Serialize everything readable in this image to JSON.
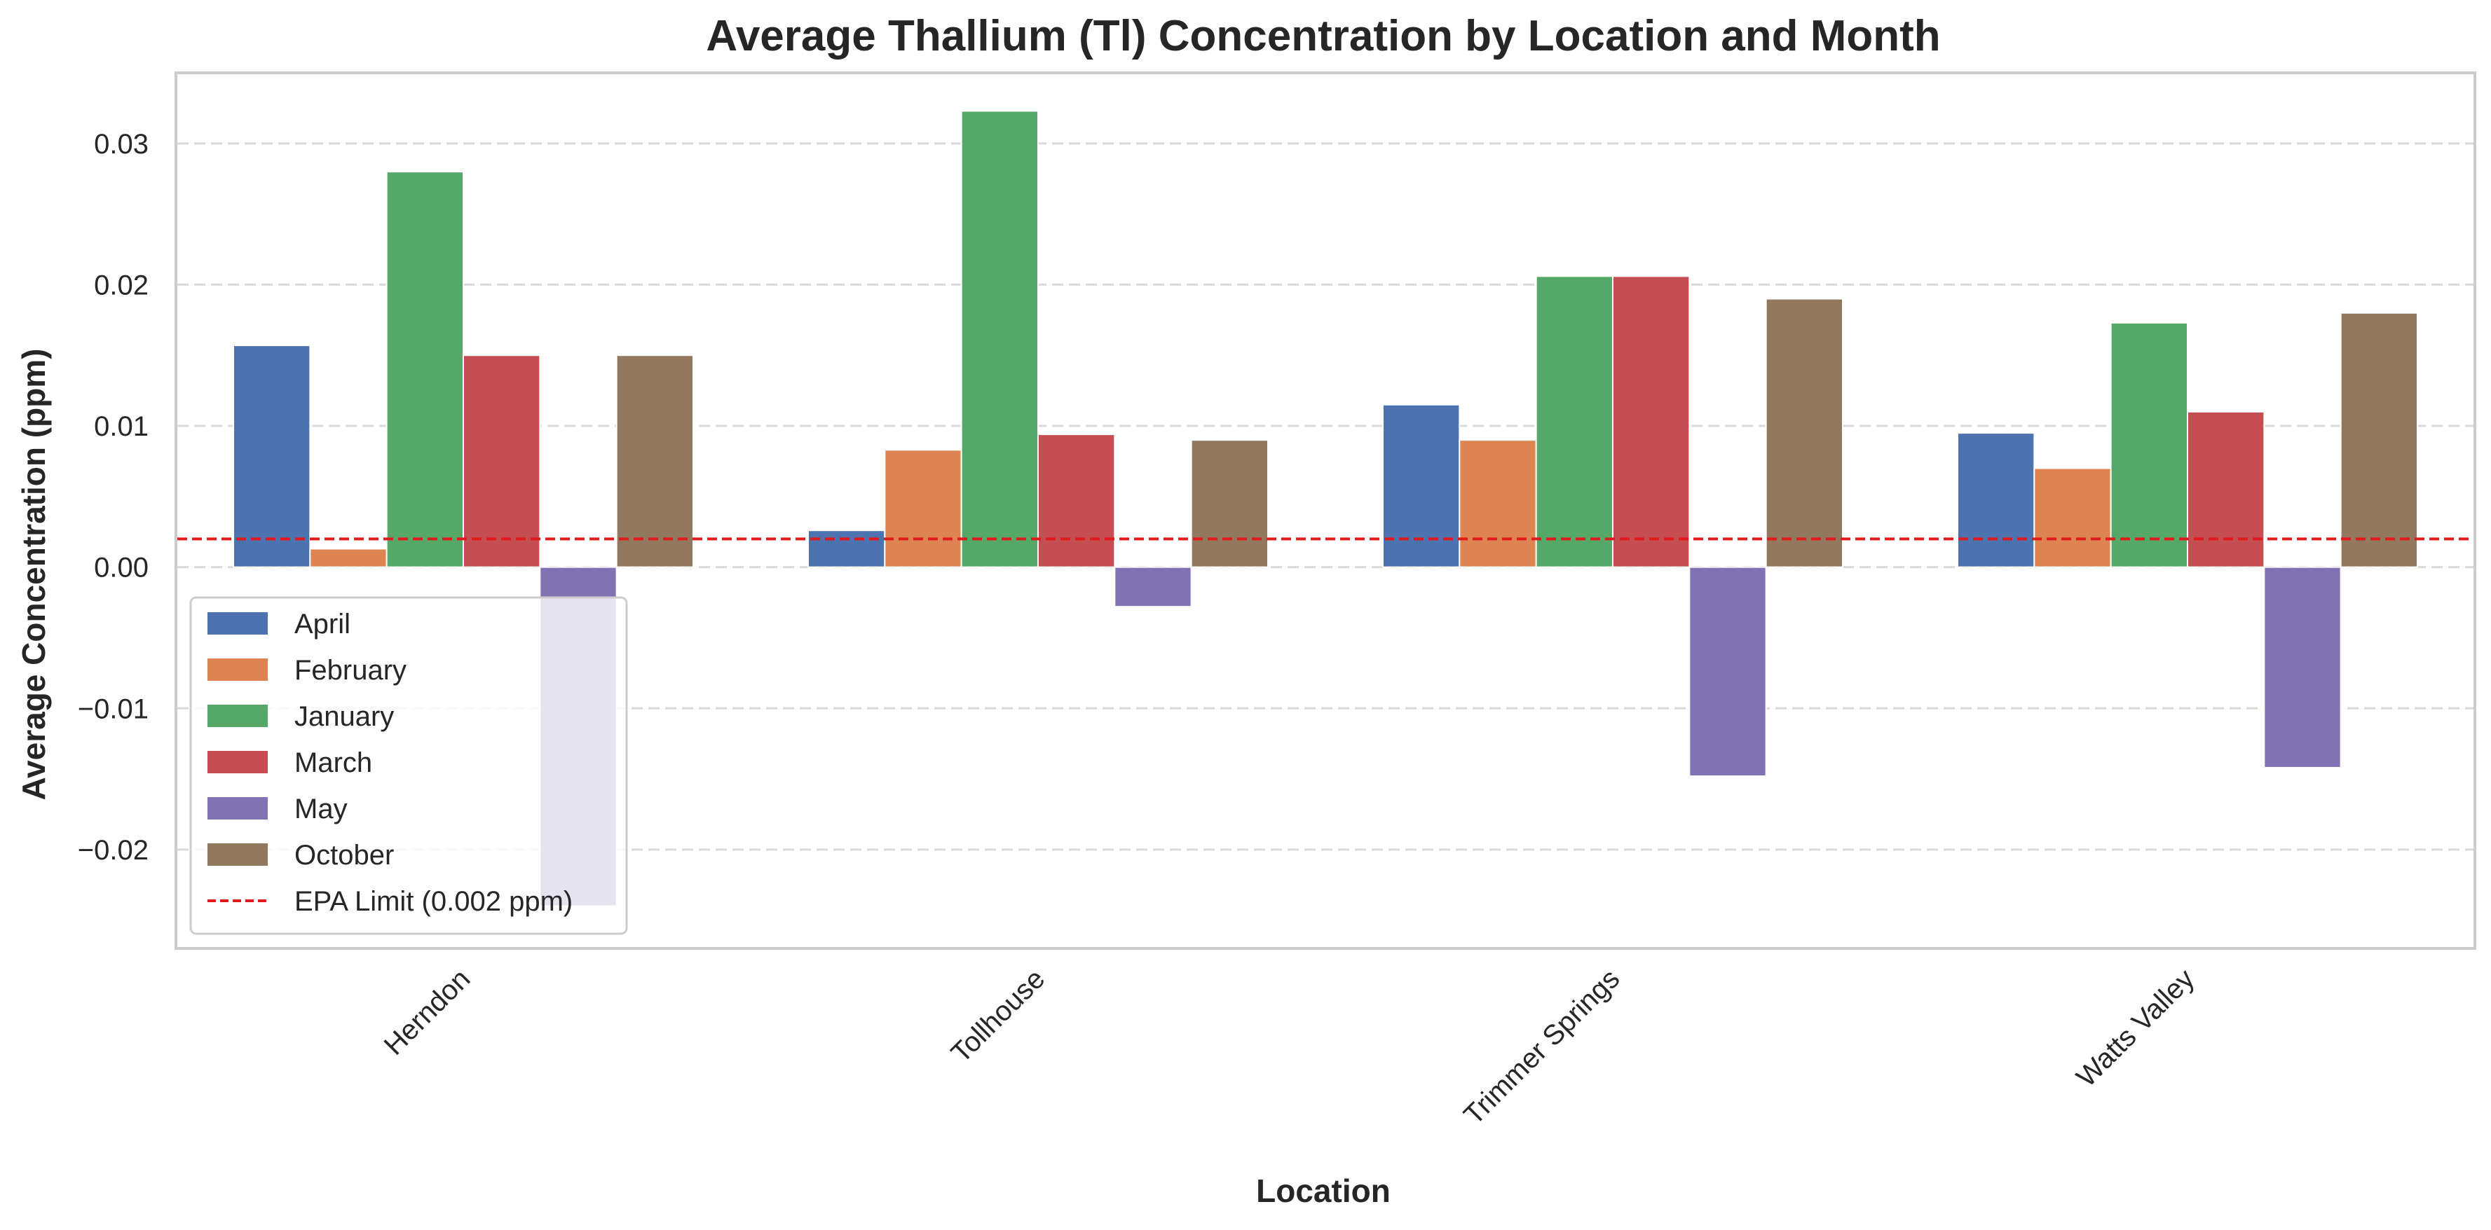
{
  "chart_data": {
    "type": "bar",
    "title": "Average Thallium (Tl) Concentration by Location and Month",
    "xlabel": "Location",
    "ylabel": "Average Concentration (ppm)",
    "ylim": [
      -0.027,
      0.035
    ],
    "yticks": [
      -0.02,
      -0.01,
      0.0,
      0.01,
      0.02,
      0.03
    ],
    "ytick_labels": [
      "−0.02",
      "−0.01",
      "0.00",
      "0.01",
      "0.02",
      "0.03"
    ],
    "grid": "horizontal dashed",
    "legend_position": "lower-left",
    "categories": [
      "Herndon",
      "Tollhouse",
      "Trimmer Springs",
      "Watts Valley"
    ],
    "series": [
      {
        "name": "April",
        "color": "#4c72b0",
        "values": [
          0.0157,
          0.0026,
          0.0115,
          0.0095
        ]
      },
      {
        "name": "February",
        "color": "#dd8452",
        "values": [
          0.0013,
          0.0083,
          0.009,
          0.007
        ]
      },
      {
        "name": "January",
        "color": "#55a868",
        "values": [
          0.028,
          0.0323,
          0.0206,
          0.0173
        ]
      },
      {
        "name": "March",
        "color": "#c44e52",
        "values": [
          0.015,
          0.0094,
          0.0206,
          0.011
        ]
      },
      {
        "name": "May",
        "color": "#8172b3",
        "values": [
          -0.024,
          -0.0028,
          -0.0148,
          -0.0142
        ]
      },
      {
        "name": "October",
        "color": "#937860",
        "values": [
          0.015,
          0.009,
          0.019,
          0.018
        ]
      }
    ],
    "reference_line": {
      "label": "EPA Limit (0.002 ppm)",
      "value": 0.002,
      "color": "#e31a1c"
    }
  }
}
